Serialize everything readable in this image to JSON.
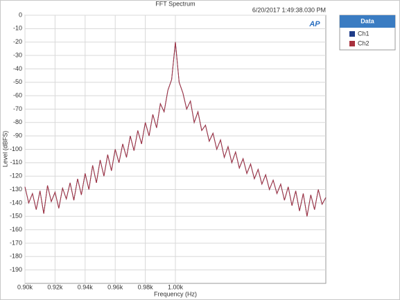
{
  "chart_data": {
    "type": "line",
    "title": "FFT Spectrum",
    "timestamp": "6/20/2017 1:49:38.030 PM",
    "logo": "AP",
    "x_label": "Frequency (Hz)",
    "y_label": "Level (dBFS)",
    "legend_title": "Data",
    "grid": true,
    "xlim": [
      900,
      1100
    ],
    "ylim": [
      -200,
      0
    ],
    "xticks": [
      {
        "value": 900,
        "label": "0.90k"
      },
      {
        "value": 920,
        "label": "0.92k"
      },
      {
        "value": 940,
        "label": "0.94k"
      },
      {
        "value": 960,
        "label": "0.96k"
      },
      {
        "value": 980,
        "label": "0.98k"
      },
      {
        "value": 1000,
        "label": "1.00k"
      }
    ],
    "yticks": [
      0,
      -10,
      -20,
      -30,
      -40,
      -50,
      -60,
      -70,
      -80,
      -90,
      -100,
      -110,
      -120,
      -130,
      -140,
      -150,
      -160,
      -170,
      -180,
      -190
    ],
    "x": [
      900,
      902.5,
      905,
      907.5,
      910,
      912.5,
      915,
      917.5,
      920,
      922.5,
      925,
      927.5,
      930,
      932.5,
      935,
      937.5,
      940,
      942.5,
      945,
      947.5,
      950,
      952.5,
      955,
      957.5,
      960,
      962.5,
      965,
      967.5,
      970,
      972.5,
      975,
      977.5,
      980,
      982.5,
      985,
      987.5,
      990,
      992.5,
      995,
      997.5,
      1000,
      1002.5,
      1005,
      1007.5,
      1010,
      1012.5,
      1015,
      1017.5,
      1020,
      1022.5,
      1025,
      1027.5,
      1030,
      1032.5,
      1035,
      1037.5,
      1040,
      1042.5,
      1045,
      1047.5,
      1050,
      1052.5,
      1055,
      1057.5,
      1060,
      1062.5,
      1065,
      1067.5,
      1070,
      1072.5,
      1075,
      1077.5,
      1080,
      1082.5,
      1085,
      1087.5,
      1090,
      1092.5,
      1095,
      1097.5,
      1100
    ],
    "series": [
      {
        "name": "Ch1",
        "color": "#1f3c88",
        "values": [
          -128,
          -140,
          -133,
          -145,
          -131,
          -148,
          -127,
          -139,
          -132,
          -144,
          -129,
          -137,
          -125,
          -138,
          -122,
          -134,
          -118,
          -130,
          -112,
          -125,
          -108,
          -120,
          -104,
          -116,
          -100,
          -110,
          -96,
          -106,
          -90,
          -101,
          -86,
          -96,
          -80,
          -90,
          -74,
          -84,
          -66,
          -72,
          -56,
          -48,
          -20,
          -50,
          -58,
          -70,
          -64,
          -80,
          -72,
          -86,
          -82,
          -94,
          -88,
          -100,
          -93,
          -106,
          -98,
          -110,
          -102,
          -114,
          -107,
          -118,
          -111,
          -122,
          -115,
          -126,
          -119,
          -130,
          -123,
          -133,
          -126,
          -138,
          -128,
          -142,
          -131,
          -146,
          -133,
          -150,
          -134,
          -145,
          -130,
          -141,
          -136
        ]
      },
      {
        "name": "Ch2",
        "color": "#a8323e",
        "values": [
          -128,
          -140,
          -133,
          -145,
          -131,
          -148,
          -127,
          -139,
          -132,
          -144,
          -129,
          -137,
          -125,
          -138,
          -122,
          -134,
          -118,
          -130,
          -112,
          -125,
          -108,
          -120,
          -104,
          -116,
          -100,
          -110,
          -96,
          -106,
          -90,
          -101,
          -86,
          -96,
          -80,
          -90,
          -74,
          -84,
          -66,
          -72,
          -56,
          -48,
          -20,
          -50,
          -58,
          -70,
          -64,
          -80,
          -72,
          -86,
          -82,
          -94,
          -88,
          -100,
          -93,
          -106,
          -98,
          -110,
          -102,
          -114,
          -107,
          -118,
          -111,
          -122,
          -115,
          -126,
          -119,
          -130,
          -123,
          -133,
          -126,
          -138,
          -128,
          -142,
          -131,
          -146,
          -133,
          -150,
          -134,
          -145,
          -130,
          -141,
          -136
        ]
      }
    ]
  }
}
